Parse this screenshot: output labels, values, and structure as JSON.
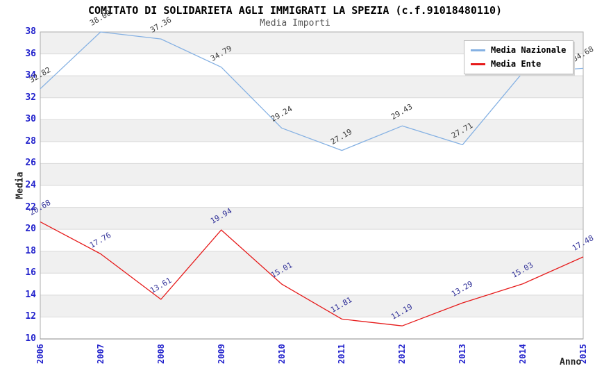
{
  "chart_data": {
    "type": "line",
    "title": "COMITATO DI SOLIDARIETA AGLI IMMIGRATI LA SPEZIA (c.f.91018480110)",
    "subtitle": "Media Importi",
    "xlabel": "Anno",
    "ylabel": "Media",
    "x": [
      "2006",
      "2007",
      "2008",
      "2009",
      "2010",
      "2011",
      "2012",
      "2013",
      "2014",
      "2015"
    ],
    "series": [
      {
        "name": "Media Nazionale",
        "color": "#85B1E3",
        "label_color": "#3C3C3C",
        "values": [
          32.82,
          38.0,
          37.36,
          34.79,
          29.24,
          27.19,
          29.43,
          27.71,
          34.31,
          34.68
        ],
        "labels": [
          "32.82",
          "38.00",
          "37.36",
          "34.79",
          "29.24",
          "27.19",
          "29.43",
          "27.71",
          null,
          "34.68"
        ]
      },
      {
        "name": "Media Ente",
        "color": "#E61A1A",
        "label_color": "#333399",
        "values": [
          20.68,
          17.76,
          13.61,
          19.94,
          15.01,
          11.81,
          11.19,
          13.29,
          15.03,
          17.48
        ],
        "labels": [
          "20.68",
          "17.76",
          "13.61",
          "19.94",
          "15.01",
          "11.81",
          "11.19",
          "13.29",
          "15.03",
          "17.48"
        ]
      }
    ],
    "ylim": [
      10,
      38
    ],
    "ytick_step": 2,
    "grid": "horizontal-bands",
    "legend_position": "top-right",
    "colors": {
      "tick_label": "#2222CC",
      "band": "#F0F0F0",
      "band_alt": "#FFFFFF",
      "gridline": "#D9D9D9",
      "frame": "#ADADAD",
      "axis_line": "#8A8A8A",
      "title": "#000000",
      "subtitle": "#555555"
    }
  }
}
